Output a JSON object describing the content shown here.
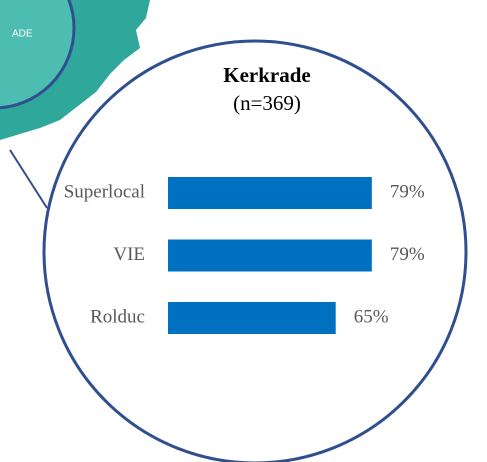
{
  "map_label": "ADE",
  "chart_data": {
    "type": "bar",
    "orientation": "horizontal",
    "title": "Kerkrade",
    "subtitle": "(n=369)",
    "categories": [
      "Superlocal",
      "VIE",
      "Rolduc"
    ],
    "values": [
      79,
      79,
      65
    ],
    "value_labels": [
      "79%",
      "79%",
      "65%"
    ],
    "color": "#0070c0"
  }
}
